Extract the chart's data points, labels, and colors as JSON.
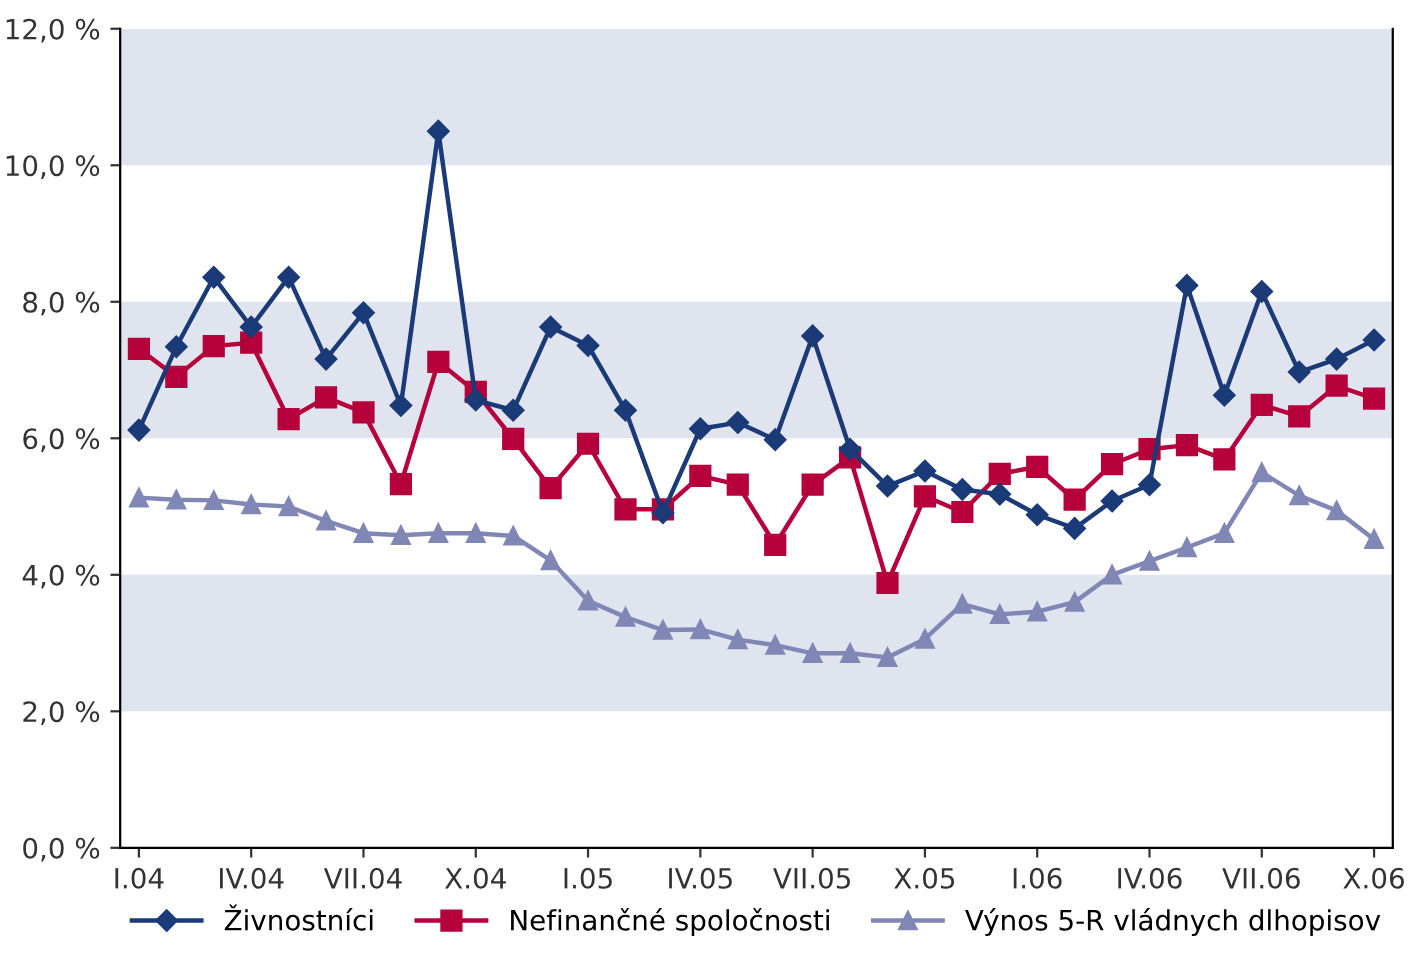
{
  "chart_data": {
    "type": "line",
    "categories": [
      "I.04",
      null,
      null,
      "IV.04",
      null,
      null,
      "VII.04",
      null,
      null,
      "X.04",
      null,
      null,
      "I.05",
      null,
      null,
      "IV.05",
      null,
      null,
      "VII.05",
      null,
      null,
      "X.05",
      null,
      null,
      "I.06",
      null,
      null,
      "IV.06",
      null,
      null,
      "VII.06",
      null,
      null,
      "X.06"
    ],
    "series": [
      {
        "name": "Živnostníci",
        "color": "#1a3a78",
        "marker": "diamond",
        "values": [
          6.12,
          7.34,
          8.36,
          7.63,
          8.36,
          7.16,
          7.84,
          6.48,
          10.5,
          6.56,
          6.41,
          7.63,
          7.36,
          6.41,
          4.91,
          6.14,
          6.23,
          5.98,
          7.5,
          5.84,
          5.3,
          5.52,
          5.25,
          5.18,
          4.88,
          4.68,
          5.08,
          5.32,
          8.24,
          6.63,
          8.15,
          6.97,
          7.16,
          7.44
        ]
      },
      {
        "name": "Nefinančné spoločnosti",
        "color": "#b5003c",
        "marker": "square",
        "values": [
          7.31,
          6.9,
          7.35,
          7.4,
          6.28,
          6.6,
          6.38,
          5.33,
          7.12,
          6.68,
          5.99,
          5.27,
          5.92,
          4.96,
          4.96,
          5.45,
          5.32,
          4.44,
          5.32,
          5.72,
          3.88,
          5.15,
          4.92,
          5.48,
          5.58,
          5.1,
          5.62,
          5.84,
          5.9,
          5.69,
          6.49,
          6.32,
          6.77,
          6.58
        ]
      },
      {
        "name": "Výnos 5-R vládnych dlhopisov",
        "color": "#8087b5",
        "marker": "triangle",
        "values": [
          5.13,
          5.1,
          5.09,
          5.03,
          5.0,
          4.79,
          4.61,
          4.58,
          4.61,
          4.61,
          4.57,
          4.21,
          3.62,
          3.38,
          3.19,
          3.2,
          3.05,
          2.97,
          2.85,
          2.85,
          2.79,
          3.06,
          3.57,
          3.42,
          3.46,
          3.6,
          4.0,
          4.2,
          4.4,
          4.61,
          5.5,
          5.16,
          4.94,
          4.52
        ]
      }
    ],
    "ylim": [
      0,
      12
    ],
    "yticks": [
      {
        "value": 0,
        "label": "0,0 %"
      },
      {
        "value": 2,
        "label": "2,0 %"
      },
      {
        "value": 4,
        "label": "4,0 %"
      },
      {
        "value": 6,
        "label": "6,0 %"
      },
      {
        "value": 8,
        "label": "8,0 %"
      },
      {
        "value": 10,
        "label": "10,0 %"
      },
      {
        "value": 12,
        "label": "12,0 %"
      }
    ],
    "bands": [
      {
        "axis": "y",
        "from": 2,
        "to": 4,
        "color": "#dfe4ee"
      },
      {
        "axis": "y",
        "from": 6,
        "to": 8,
        "color": "#dfe4ee"
      },
      {
        "axis": "y",
        "from": 10,
        "to": 12,
        "color": "#dfe4ee"
      }
    ],
    "grid": false,
    "legend": "bottom",
    "line_style": "solid"
  }
}
